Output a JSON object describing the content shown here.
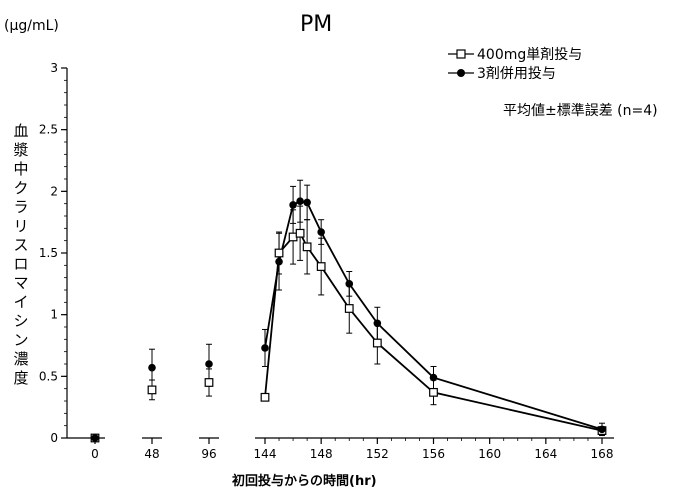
{
  "chart_data": {
    "type": "line",
    "title": "PM",
    "unit": "(μg/mL)",
    "ylabel": "血漿中クラリスロマイシン濃度",
    "xlabel": "初回投与からの時間(hr)",
    "annotation": "平均値±標準誤差 (n=4)",
    "legend_position": "top-right",
    "grid": false,
    "ylim": [
      0,
      3
    ],
    "yticks": [
      0,
      0.5,
      1,
      1.5,
      2,
      2.5,
      3
    ],
    "ytick_labels": [
      "0",
      "0.5",
      "1",
      "1.5",
      "2",
      "2.5",
      "3"
    ],
    "xticks": [
      0,
      48,
      96,
      144,
      148,
      152,
      156,
      160,
      164,
      168
    ],
    "xtick_labels": [
      "0",
      "48",
      "96",
      "144",
      "148",
      "152",
      "156",
      "160",
      "164",
      "168"
    ],
    "axis_break": "96-144",
    "series": [
      {
        "name": "400mg単剤投与",
        "marker": "open-square",
        "color": "#000000",
        "points": [
          {
            "x": 0,
            "y": 0,
            "err": 0,
            "connected": false
          },
          {
            "x": 48,
            "y": 0.39,
            "err": 0.08,
            "connected": false
          },
          {
            "x": 96,
            "y": 0.45,
            "err": 0.11,
            "connected": false
          },
          {
            "x": 144,
            "y": 0.33,
            "err": 0,
            "connected": true
          },
          {
            "x": 145,
            "y": 1.5,
            "err": 0.17,
            "connected": true
          },
          {
            "x": 146,
            "y": 1.63,
            "err": 0.22,
            "connected": true
          },
          {
            "x": 146.5,
            "y": 1.66,
            "err": 0.22,
            "connected": true
          },
          {
            "x": 147,
            "y": 1.55,
            "err": 0.22,
            "connected": true
          },
          {
            "x": 148,
            "y": 1.39,
            "err": 0.23,
            "connected": true
          },
          {
            "x": 150,
            "y": 1.05,
            "err": 0.2,
            "connected": true
          },
          {
            "x": 152,
            "y": 0.77,
            "err": 0.17,
            "connected": true
          },
          {
            "x": 156,
            "y": 0.37,
            "err": 0.1,
            "connected": true
          },
          {
            "x": 168,
            "y": 0.06,
            "err": 0.03,
            "connected": true
          }
        ]
      },
      {
        "name": "3剤併用投与",
        "marker": "filled-circle",
        "color": "#000000",
        "points": [
          {
            "x": 0,
            "y": 0,
            "err": 0,
            "connected": false
          },
          {
            "x": 48,
            "y": 0.57,
            "err": 0.15,
            "connected": false
          },
          {
            "x": 96,
            "y": 0.6,
            "err": 0.16,
            "connected": false
          },
          {
            "x": 144,
            "y": 0.73,
            "err": 0.15,
            "connected": true
          },
          {
            "x": 145,
            "y": 1.43,
            "err": 0.23,
            "connected": true
          },
          {
            "x": 146,
            "y": 1.89,
            "err": 0.15,
            "connected": true
          },
          {
            "x": 146.5,
            "y": 1.92,
            "err": 0.17,
            "connected": true
          },
          {
            "x": 147,
            "y": 1.91,
            "err": 0.14,
            "connected": true
          },
          {
            "x": 148,
            "y": 1.67,
            "err": 0.1,
            "connected": true
          },
          {
            "x": 150,
            "y": 1.25,
            "err": 0.1,
            "connected": true
          },
          {
            "x": 152,
            "y": 0.93,
            "err": 0.13,
            "connected": true
          },
          {
            "x": 156,
            "y": 0.49,
            "err": 0.09,
            "connected": true
          },
          {
            "x": 168,
            "y": 0.07,
            "err": 0.05,
            "connected": true
          }
        ]
      }
    ]
  }
}
